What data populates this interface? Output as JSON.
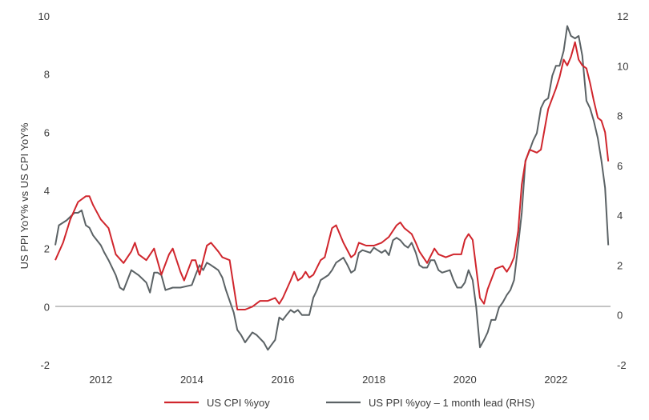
{
  "chart_data": {
    "type": "line",
    "ylabel": "US PPI YoY% vs US CPI YoY%",
    "y_left": {
      "min": -2,
      "max": 10,
      "ticks": [
        -2,
        0,
        2,
        4,
        6,
        8,
        10
      ]
    },
    "y_right": {
      "min": -2,
      "max": 12,
      "ticks": [
        -2,
        0,
        2,
        4,
        6,
        8,
        10,
        12
      ]
    },
    "x_range": [
      2011.0,
      2023.2
    ],
    "x_ticks": [
      2012,
      2014,
      2016,
      2018,
      2020,
      2022
    ],
    "grid": false,
    "zero_line": true,
    "legend_position": "bottom",
    "series": [
      {
        "name": "US CPI %yoy",
        "axis": "left",
        "color": "#d0262d",
        "points": [
          [
            2011.0,
            1.6
          ],
          [
            2011.17,
            2.2
          ],
          [
            2011.33,
            3.0
          ],
          [
            2011.5,
            3.6
          ],
          [
            2011.67,
            3.8
          ],
          [
            2011.75,
            3.8
          ],
          [
            2011.83,
            3.5
          ],
          [
            2012.0,
            3.0
          ],
          [
            2012.17,
            2.7
          ],
          [
            2012.33,
            1.8
          ],
          [
            2012.5,
            1.5
          ],
          [
            2012.67,
            1.9
          ],
          [
            2012.75,
            2.2
          ],
          [
            2012.83,
            1.8
          ],
          [
            2013.0,
            1.6
          ],
          [
            2013.17,
            2.0
          ],
          [
            2013.33,
            1.1
          ],
          [
            2013.5,
            1.8
          ],
          [
            2013.58,
            2.0
          ],
          [
            2013.75,
            1.2
          ],
          [
            2013.83,
            0.9
          ],
          [
            2014.0,
            1.6
          ],
          [
            2014.08,
            1.6
          ],
          [
            2014.17,
            1.1
          ],
          [
            2014.33,
            2.1
          ],
          [
            2014.42,
            2.2
          ],
          [
            2014.58,
            1.9
          ],
          [
            2014.67,
            1.7
          ],
          [
            2014.83,
            1.6
          ],
          [
            2015.0,
            -0.1
          ],
          [
            2015.17,
            -0.1
          ],
          [
            2015.33,
            0.0
          ],
          [
            2015.5,
            0.2
          ],
          [
            2015.67,
            0.2
          ],
          [
            2015.83,
            0.3
          ],
          [
            2015.92,
            0.1
          ],
          [
            2016.0,
            0.3
          ],
          [
            2016.17,
            0.9
          ],
          [
            2016.25,
            1.2
          ],
          [
            2016.33,
            0.9
          ],
          [
            2016.42,
            1.0
          ],
          [
            2016.5,
            1.2
          ],
          [
            2016.58,
            1.0
          ],
          [
            2016.67,
            1.1
          ],
          [
            2016.83,
            1.6
          ],
          [
            2016.92,
            1.7
          ],
          [
            2017.0,
            2.2
          ],
          [
            2017.08,
            2.7
          ],
          [
            2017.17,
            2.8
          ],
          [
            2017.33,
            2.2
          ],
          [
            2017.5,
            1.7
          ],
          [
            2017.58,
            1.8
          ],
          [
            2017.67,
            2.2
          ],
          [
            2017.83,
            2.1
          ],
          [
            2018.0,
            2.1
          ],
          [
            2018.17,
            2.2
          ],
          [
            2018.33,
            2.4
          ],
          [
            2018.5,
            2.8
          ],
          [
            2018.58,
            2.9
          ],
          [
            2018.67,
            2.7
          ],
          [
            2018.83,
            2.5
          ],
          [
            2018.92,
            2.2
          ],
          [
            2019.0,
            1.9
          ],
          [
            2019.17,
            1.5
          ],
          [
            2019.33,
            2.0
          ],
          [
            2019.42,
            1.8
          ],
          [
            2019.58,
            1.7
          ],
          [
            2019.75,
            1.8
          ],
          [
            2019.92,
            1.8
          ],
          [
            2020.0,
            2.3
          ],
          [
            2020.08,
            2.5
          ],
          [
            2020.17,
            2.3
          ],
          [
            2020.33,
            0.3
          ],
          [
            2020.42,
            0.1
          ],
          [
            2020.5,
            0.6
          ],
          [
            2020.67,
            1.3
          ],
          [
            2020.83,
            1.4
          ],
          [
            2020.92,
            1.2
          ],
          [
            2021.0,
            1.4
          ],
          [
            2021.08,
            1.7
          ],
          [
            2021.17,
            2.6
          ],
          [
            2021.25,
            4.2
          ],
          [
            2021.33,
            5.0
          ],
          [
            2021.42,
            5.4
          ],
          [
            2021.58,
            5.3
          ],
          [
            2021.67,
            5.4
          ],
          [
            2021.83,
            6.8
          ],
          [
            2022.0,
            7.5
          ],
          [
            2022.08,
            7.9
          ],
          [
            2022.17,
            8.5
          ],
          [
            2022.25,
            8.3
          ],
          [
            2022.33,
            8.6
          ],
          [
            2022.42,
            9.1
          ],
          [
            2022.5,
            8.5
          ],
          [
            2022.58,
            8.3
          ],
          [
            2022.67,
            8.2
          ],
          [
            2022.75,
            7.7
          ],
          [
            2022.83,
            7.1
          ],
          [
            2022.92,
            6.5
          ],
          [
            2023.0,
            6.4
          ],
          [
            2023.08,
            6.0
          ],
          [
            2023.15,
            5.0
          ]
        ]
      },
      {
        "name": "US PPI %yoy – 1 month lead (RHS)",
        "axis": "right",
        "color": "#5b6265",
        "points": [
          [
            2011.0,
            2.8
          ],
          [
            2011.08,
            3.6
          ],
          [
            2011.25,
            3.8
          ],
          [
            2011.42,
            4.1
          ],
          [
            2011.5,
            4.1
          ],
          [
            2011.58,
            4.2
          ],
          [
            2011.67,
            3.6
          ],
          [
            2011.75,
            3.5
          ],
          [
            2011.83,
            3.2
          ],
          [
            2012.0,
            2.8
          ],
          [
            2012.08,
            2.5
          ],
          [
            2012.17,
            2.2
          ],
          [
            2012.33,
            1.6
          ],
          [
            2012.42,
            1.1
          ],
          [
            2012.5,
            1.0
          ],
          [
            2012.67,
            1.8
          ],
          [
            2012.75,
            1.7
          ],
          [
            2012.83,
            1.6
          ],
          [
            2013.0,
            1.3
          ],
          [
            2013.08,
            0.9
          ],
          [
            2013.17,
            1.7
          ],
          [
            2013.25,
            1.7
          ],
          [
            2013.33,
            1.6
          ],
          [
            2013.42,
            1.0
          ],
          [
            2013.58,
            1.1
          ],
          [
            2013.75,
            1.1
          ],
          [
            2014.0,
            1.2
          ],
          [
            2014.08,
            1.6
          ],
          [
            2014.17,
            2.0
          ],
          [
            2014.25,
            1.8
          ],
          [
            2014.33,
            2.1
          ],
          [
            2014.42,
            2.0
          ],
          [
            2014.5,
            1.9
          ],
          [
            2014.58,
            1.8
          ],
          [
            2014.67,
            1.5
          ],
          [
            2014.75,
            1.0
          ],
          [
            2014.92,
            0.1
          ],
          [
            2015.0,
            -0.6
          ],
          [
            2015.08,
            -0.8
          ],
          [
            2015.17,
            -1.1
          ],
          [
            2015.33,
            -0.7
          ],
          [
            2015.42,
            -0.8
          ],
          [
            2015.58,
            -1.1
          ],
          [
            2015.67,
            -1.4
          ],
          [
            2015.75,
            -1.2
          ],
          [
            2015.83,
            -1.0
          ],
          [
            2015.92,
            -0.1
          ],
          [
            2016.0,
            -0.2
          ],
          [
            2016.08,
            0.0
          ],
          [
            2016.17,
            0.2
          ],
          [
            2016.25,
            0.1
          ],
          [
            2016.33,
            0.2
          ],
          [
            2016.42,
            0.0
          ],
          [
            2016.58,
            0.0
          ],
          [
            2016.67,
            0.7
          ],
          [
            2016.75,
            1.0
          ],
          [
            2016.83,
            1.4
          ],
          [
            2017.0,
            1.6
          ],
          [
            2017.08,
            1.8
          ],
          [
            2017.17,
            2.1
          ],
          [
            2017.33,
            2.3
          ],
          [
            2017.42,
            2.0
          ],
          [
            2017.5,
            1.7
          ],
          [
            2017.58,
            1.8
          ],
          [
            2017.67,
            2.5
          ],
          [
            2017.75,
            2.6
          ],
          [
            2017.92,
            2.5
          ],
          [
            2018.0,
            2.7
          ],
          [
            2018.08,
            2.6
          ],
          [
            2018.17,
            2.5
          ],
          [
            2018.25,
            2.6
          ],
          [
            2018.33,
            2.4
          ],
          [
            2018.42,
            3.0
          ],
          [
            2018.5,
            3.1
          ],
          [
            2018.58,
            3.0
          ],
          [
            2018.67,
            2.8
          ],
          [
            2018.75,
            2.7
          ],
          [
            2018.83,
            2.9
          ],
          [
            2018.92,
            2.5
          ],
          [
            2019.0,
            2.0
          ],
          [
            2019.08,
            1.9
          ],
          [
            2019.17,
            1.9
          ],
          [
            2019.25,
            2.2
          ],
          [
            2019.33,
            2.2
          ],
          [
            2019.42,
            1.8
          ],
          [
            2019.5,
            1.7
          ],
          [
            2019.67,
            1.8
          ],
          [
            2019.75,
            1.4
          ],
          [
            2019.83,
            1.1
          ],
          [
            2019.92,
            1.1
          ],
          [
            2020.0,
            1.3
          ],
          [
            2020.08,
            1.8
          ],
          [
            2020.17,
            1.4
          ],
          [
            2020.25,
            0.3
          ],
          [
            2020.33,
            -1.3
          ],
          [
            2020.42,
            -1.0
          ],
          [
            2020.5,
            -0.7
          ],
          [
            2020.58,
            -0.2
          ],
          [
            2020.67,
            -0.2
          ],
          [
            2020.75,
            0.3
          ],
          [
            2020.83,
            0.5
          ],
          [
            2020.92,
            0.8
          ],
          [
            2021.0,
            1.0
          ],
          [
            2021.08,
            1.4
          ],
          [
            2021.17,
            2.8
          ],
          [
            2021.25,
            4.1
          ],
          [
            2021.33,
            6.2
          ],
          [
            2021.42,
            6.6
          ],
          [
            2021.5,
            7.0
          ],
          [
            2021.58,
            7.3
          ],
          [
            2021.67,
            8.3
          ],
          [
            2021.75,
            8.6
          ],
          [
            2021.83,
            8.7
          ],
          [
            2021.92,
            9.6
          ],
          [
            2022.0,
            10.0
          ],
          [
            2022.08,
            10.0
          ],
          [
            2022.17,
            10.6
          ],
          [
            2022.25,
            11.6
          ],
          [
            2022.33,
            11.2
          ],
          [
            2022.42,
            11.1
          ],
          [
            2022.5,
            11.2
          ],
          [
            2022.58,
            10.4
          ],
          [
            2022.67,
            8.6
          ],
          [
            2022.75,
            8.3
          ],
          [
            2022.83,
            7.8
          ],
          [
            2022.92,
            7.1
          ],
          [
            2023.0,
            6.2
          ],
          [
            2023.08,
            5.1
          ],
          [
            2023.15,
            2.8
          ]
        ]
      }
    ]
  }
}
